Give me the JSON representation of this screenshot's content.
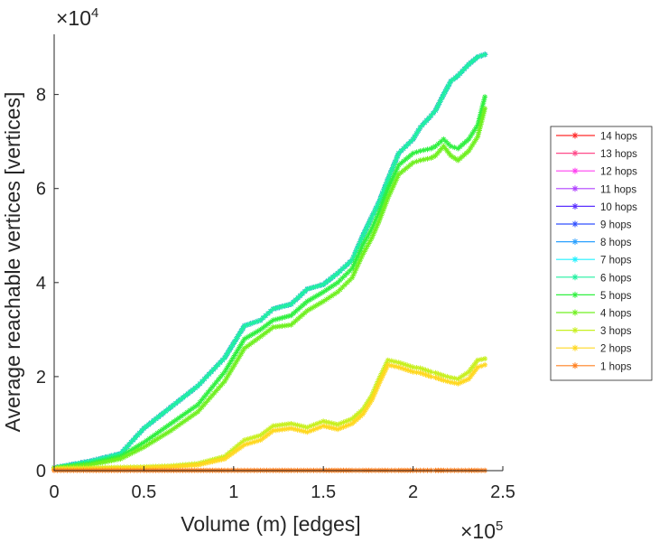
{
  "chart_data": {
    "type": "line",
    "title": "",
    "xlabel": "Volume (m) [edges]",
    "ylabel": "Average reachable vertices [vertices]",
    "x_multiplier": "×10",
    "x_exponent": "5",
    "y_multiplier": "×10",
    "y_exponent": "4",
    "xlim": [
      0,
      250000
    ],
    "ylim": [
      0,
      92800
    ],
    "xticks": [
      0,
      50000,
      100000,
      150000,
      200000,
      250000
    ],
    "xtick_labels": [
      "0",
      "0.5",
      "1",
      "1.5",
      "2",
      "2.5"
    ],
    "yticks": [
      0,
      20000,
      40000,
      60000,
      80000
    ],
    "ytick_labels": [
      "0",
      "2",
      "4",
      "6",
      "8"
    ],
    "grid": false,
    "legend_position": "right-outside",
    "x": [
      0,
      20000,
      37000,
      50000,
      65000,
      80000,
      95000,
      106000,
      115000,
      122000,
      132000,
      141000,
      150000,
      158000,
      166000,
      172000,
      177000,
      181000,
      186000,
      192000,
      200000,
      204000,
      210000,
      212500,
      217000,
      221000,
      225000,
      231000,
      236000,
      240000
    ],
    "series": [
      {
        "name": "14 hops",
        "color": "#ff2a2a",
        "values": [
          600,
          2000,
          3600,
          9000,
          13500,
          18000,
          24000,
          30800,
          32000,
          34400,
          35400,
          38600,
          39600,
          42000,
          44800,
          50000,
          54000,
          57100,
          62000,
          67500,
          70500,
          73000,
          75500,
          76600,
          80000,
          82800,
          84000,
          86400,
          88000,
          88500
        ]
      },
      {
        "name": "13 hops",
        "color": "#ff4a8a",
        "values": [
          600,
          2000,
          3600,
          9000,
          13500,
          18000,
          24000,
          30800,
          32000,
          34400,
          35400,
          38600,
          39600,
          42000,
          44800,
          50000,
          54000,
          57100,
          62000,
          67500,
          70500,
          73000,
          75500,
          76600,
          80000,
          82800,
          84000,
          86400,
          88000,
          88500
        ]
      },
      {
        "name": "12 hops",
        "color": "#ff40f0",
        "values": [
          600,
          2000,
          3600,
          9000,
          13500,
          18000,
          24000,
          30800,
          32000,
          34400,
          35400,
          38600,
          39600,
          42000,
          44800,
          50000,
          54000,
          57100,
          62000,
          67500,
          70500,
          73000,
          75500,
          76600,
          80000,
          82800,
          84000,
          86400,
          88000,
          88500
        ]
      },
      {
        "name": "11 hops",
        "color": "#b040ff",
        "values": [
          600,
          2000,
          3600,
          9000,
          13500,
          18000,
          24000,
          30800,
          32000,
          34400,
          35400,
          38600,
          39600,
          42000,
          44800,
          50000,
          54000,
          57100,
          62000,
          67500,
          70500,
          73000,
          75500,
          76600,
          80000,
          82800,
          84000,
          86400,
          88000,
          88500
        ]
      },
      {
        "name": "10 hops",
        "color": "#5a30ff",
        "values": [
          600,
          2000,
          3600,
          9000,
          13500,
          18000,
          24000,
          30800,
          32000,
          34400,
          35400,
          38600,
          39600,
          42000,
          44800,
          50000,
          54000,
          57100,
          62000,
          67500,
          70500,
          73000,
          75500,
          76600,
          80000,
          82800,
          84000,
          86400,
          88000,
          88500
        ]
      },
      {
        "name": "9 hops",
        "color": "#3050ff",
        "values": [
          600,
          2000,
          3600,
          9000,
          13500,
          18000,
          24000,
          30800,
          32000,
          34400,
          35400,
          38600,
          39600,
          42000,
          44800,
          50000,
          54000,
          57100,
          62000,
          67500,
          70500,
          73000,
          75500,
          76600,
          80000,
          82800,
          84000,
          86400,
          88000,
          88500
        ]
      },
      {
        "name": "8 hops",
        "color": "#2aa0ff",
        "values": [
          600,
          2000,
          3600,
          9000,
          13500,
          18000,
          24000,
          30800,
          32000,
          34400,
          35400,
          38600,
          39600,
          42000,
          44800,
          50000,
          54000,
          57100,
          62000,
          67500,
          70500,
          73000,
          75500,
          76600,
          80000,
          82800,
          84000,
          86400,
          88000,
          88500
        ]
      },
      {
        "name": "7 hops",
        "color": "#20f0ff",
        "values": [
          600,
          2000,
          3600,
          9000,
          13500,
          18000,
          24000,
          30800,
          32000,
          34400,
          35400,
          38600,
          39600,
          42000,
          44800,
          50000,
          54000,
          57100,
          62000,
          67500,
          70500,
          73000,
          75500,
          76600,
          80000,
          82800,
          84000,
          86400,
          88000,
          88500
        ]
      },
      {
        "name": "6 hops",
        "color": "#20f0a0",
        "values": [
          600,
          2000,
          3600,
          9000,
          13500,
          18000,
          24000,
          30800,
          32000,
          34400,
          35400,
          38600,
          39600,
          42000,
          44800,
          50000,
          54000,
          57100,
          62000,
          67500,
          70500,
          73000,
          75500,
          76600,
          80000,
          82800,
          84000,
          86400,
          88000,
          88500
        ]
      },
      {
        "name": "5 hops",
        "color": "#30f040",
        "values": [
          600,
          1500,
          3000,
          6000,
          10000,
          14000,
          21000,
          28000,
          30000,
          32000,
          33000,
          36000,
          38000,
          40000,
          43000,
          48000,
          51500,
          55000,
          60000,
          65000,
          67500,
          68000,
          68500,
          69000,
          70500,
          69000,
          68500,
          70500,
          73500,
          79500
        ]
      },
      {
        "name": "4 hops",
        "color": "#70f020",
        "values": [
          600,
          1200,
          2500,
          5000,
          8500,
          12500,
          19000,
          26000,
          28500,
          30500,
          31000,
          34000,
          36000,
          38000,
          41000,
          46000,
          49500,
          53000,
          58000,
          63000,
          65500,
          66000,
          66500,
          67000,
          69000,
          67000,
          66000,
          68000,
          71000,
          77000
        ]
      },
      {
        "name": "3 hops",
        "color": "#c8f020",
        "values": [
          500,
          600,
          700,
          800,
          1000,
          1500,
          3000,
          6500,
          7500,
          9500,
          10000,
          9200,
          10500,
          9800,
          11000,
          13000,
          16000,
          19500,
          23500,
          23000,
          22000,
          21800,
          21000,
          20800,
          20200,
          19800,
          19500,
          21000,
          23500,
          23800
        ]
      },
      {
        "name": "2 hops",
        "color": "#ffd820",
        "values": [
          300,
          400,
          500,
          600,
          800,
          1200,
          2500,
          5500,
          6500,
          8500,
          9000,
          8200,
          9500,
          8800,
          10000,
          12000,
          15000,
          18500,
          22500,
          22000,
          21000,
          20800,
          20000,
          19800,
          19200,
          18800,
          18500,
          19500,
          22000,
          22500
        ]
      },
      {
        "name": "1 hops",
        "color": "#ff8020",
        "values": [
          50,
          50,
          50,
          50,
          50,
          50,
          50,
          50,
          50,
          50,
          50,
          50,
          50,
          50,
          50,
          50,
          50,
          50,
          50,
          50,
          50,
          50,
          50,
          50,
          50,
          50,
          50,
          50,
          50,
          50
        ]
      }
    ]
  }
}
